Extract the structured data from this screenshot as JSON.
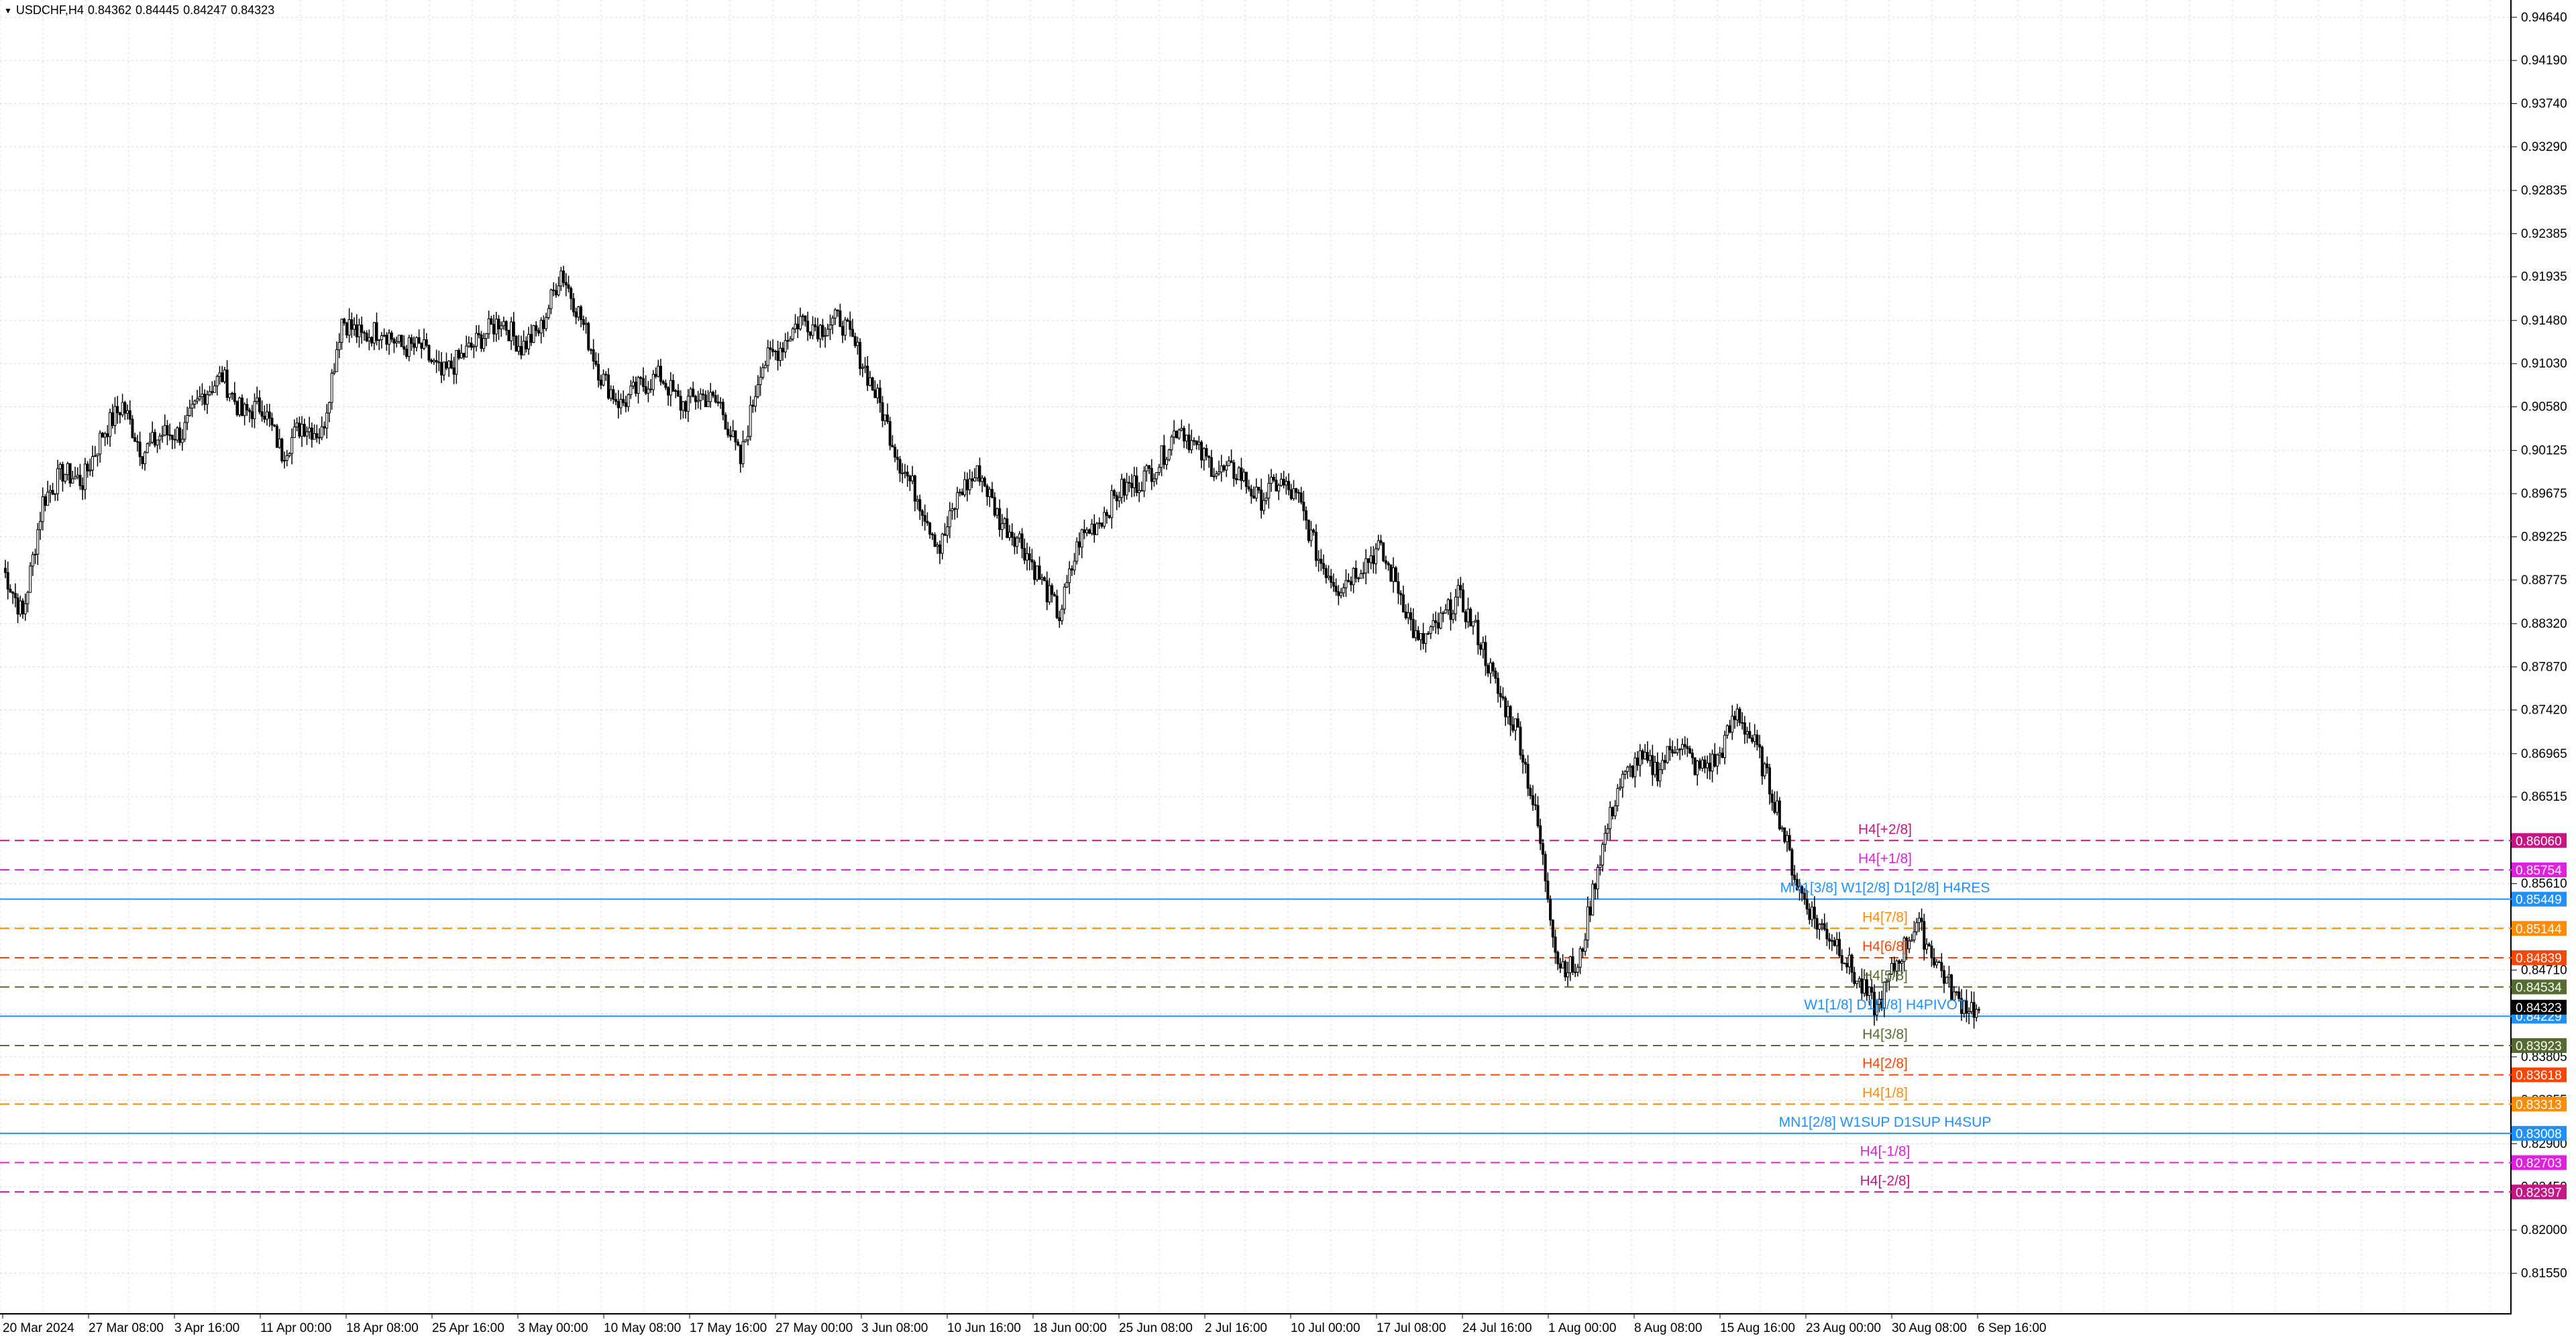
{
  "header": {
    "symbol": "USDCHF,H4",
    "open": "0.84362",
    "high": "0.84445",
    "low": "0.84247",
    "close": "0.84323"
  },
  "price_axis": {
    "min": 0.8112,
    "max": 0.9482,
    "ticks": [
      "0.94640",
      "0.94190",
      "0.93740",
      "0.93290",
      "0.92835",
      "0.92385",
      "0.91935",
      "0.91480",
      "0.91030",
      "0.90580",
      "0.90125",
      "0.89675",
      "0.89225",
      "0.88775",
      "0.88320",
      "0.87870",
      "0.87420",
      "0.86965",
      "0.86515",
      "0.86060",
      "0.85610",
      "0.85155",
      "0.84710",
      "0.84255",
      "0.83805",
      "0.83355",
      "0.82900",
      "0.82450",
      "0.82000",
      "0.81550"
    ]
  },
  "time_axis": {
    "labels": [
      "20 Mar 2024",
      "27 Mar 08:00",
      "3 Apr 16:00",
      "11 Apr 00:00",
      "18 Apr 08:00",
      "25 Apr 16:00",
      "3 May 00:00",
      "10 May 08:00",
      "17 May 16:00",
      "27 May 00:00",
      "3 Jun 08:00",
      "10 Jun 16:00",
      "18 Jun 00:00",
      "25 Jun 08:00",
      "2 Jul 16:00",
      "10 Jul 00:00",
      "17 Jul 08:00",
      "24 Jul 16:00",
      "1 Aug 00:00",
      "8 Aug 08:00",
      "15 Aug 16:00",
      "23 Aug 00:00",
      "30 Aug 08:00",
      "6 Sep 16:00"
    ]
  },
  "levels": [
    {
      "price": 0.8606,
      "tag": "0.86060",
      "label": "H4[+2/8]",
      "color": "#c71585",
      "style": "dash"
    },
    {
      "price": 0.85754,
      "tag": "0.85754",
      "label": "H4[+1/8]",
      "color": "#e020e0",
      "style": "dash"
    },
    {
      "price": 0.85449,
      "tag": "0.85449",
      "label": "MN1[3/8] W1[2/8] D1[2/8] H4RES",
      "color": "#1e90ff",
      "style": "solid"
    },
    {
      "price": 0.85144,
      "tag": "0.85144",
      "label": "H4[7/8]",
      "color": "#ff8c00",
      "style": "dash"
    },
    {
      "price": 0.84839,
      "tag": "0.84839",
      "label": "H4[6/8]",
      "color": "#ff4500",
      "style": "dash"
    },
    {
      "price": 0.84534,
      "tag": "0.84534",
      "label": "H4[5/8]",
      "color": "#556b2f",
      "style": "dash"
    },
    {
      "price": 0.84229,
      "tag": "0.84229",
      "label": "W1[1/8] D1[1/8] H4PIVOT",
      "color": "#1e90ff",
      "style": "solid"
    },
    {
      "price": 0.83923,
      "tag": "0.83923",
      "label": "H4[3/8]",
      "color": "#556b2f",
      "style": "dash"
    },
    {
      "price": 0.83618,
      "tag": "0.83618",
      "label": "H4[2/8]",
      "color": "#ff4500",
      "style": "dash"
    },
    {
      "price": 0.83313,
      "tag": "0.83313",
      "label": "H4[1/8]",
      "color": "#ff8c00",
      "style": "dash"
    },
    {
      "price": 0.83008,
      "tag": "0.83008",
      "label": "MN1[2/8] W1SUP D1SUP H4SUP",
      "color": "#1e90ff",
      "style": "solid"
    },
    {
      "price": 0.82703,
      "tag": "0.82703",
      "label": "H4[-1/8]",
      "color": "#e020e0",
      "style": "dash"
    },
    {
      "price": 0.82397,
      "tag": "0.82397",
      "label": "H4[-2/8]",
      "color": "#c71585",
      "style": "dash"
    }
  ],
  "current_price": {
    "price": 0.84323,
    "tag": "0.84323",
    "color": "#000000"
  },
  "colors": {
    "grid": "#d8d8d8",
    "candle": "#000000",
    "background": "#ffffff"
  },
  "chart_data": {
    "type": "line",
    "title": "",
    "series": [
      {
        "values": [
          0.889,
          0.884,
          0.896,
          0.899,
          0.898,
          0.903,
          0.906,
          0.901,
          0.903,
          0.903,
          0.907,
          0.909,
          0.905,
          0.906,
          0.901,
          0.904,
          0.903,
          0.915,
          0.913,
          0.914,
          0.912,
          0.912,
          0.909,
          0.911,
          0.913,
          0.915,
          0.912,
          0.914,
          0.92,
          0.915,
          0.909,
          0.906,
          0.908,
          0.909,
          0.906,
          0.907,
          0.906,
          0.9,
          0.91,
          0.912,
          0.915,
          0.914,
          0.915,
          0.911,
          0.906,
          0.9,
          0.896,
          0.891,
          0.897,
          0.899,
          0.894,
          0.892,
          0.888,
          0.884,
          0.892,
          0.894,
          0.897,
          0.898,
          0.9,
          0.904,
          0.901,
          0.899,
          0.899,
          0.896,
          0.898,
          0.896,
          0.89,
          0.887,
          0.889,
          0.891,
          0.887,
          0.881,
          0.883,
          0.886,
          0.882,
          0.876,
          0.872,
          0.862,
          0.848,
          0.847,
          0.858,
          0.866,
          0.869,
          0.868,
          0.871,
          0.868,
          0.869,
          0.874,
          0.87,
          0.864,
          0.856,
          0.852,
          0.85,
          0.846,
          0.843,
          0.848,
          0.852,
          0.848,
          0.844,
          0.843
        ]
      }
    ],
    "ylim": [
      0.8112,
      0.9482
    ]
  }
}
